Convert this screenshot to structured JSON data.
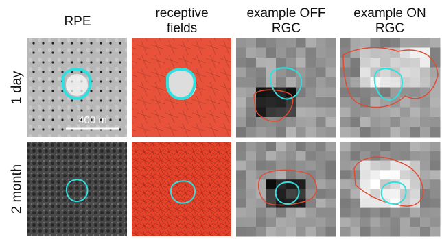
{
  "column_headers": [
    [
      "RPE"
    ],
    [
      "receptive",
      "fields"
    ],
    [
      "example OFF",
      "RGC"
    ],
    [
      "example ON",
      "RGC"
    ]
  ],
  "row_labels": [
    "1 day",
    "2 month"
  ],
  "scale_bar": "400 m"
}
